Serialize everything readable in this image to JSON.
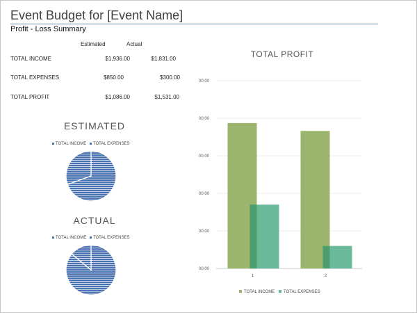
{
  "header": {
    "title": "Event Budget for [Event Name]",
    "subtitle": "Profit - Loss Summary"
  },
  "summary": {
    "col_estimated": "Estimated",
    "col_actual": "Actual",
    "rows": [
      {
        "label": "TOTAL INCOME",
        "estimated": "$1,936.00",
        "actual": "$1,831.00"
      },
      {
        "label": "TOTAL EXPENSES",
        "estimated": "$850.00",
        "actual": "$300.00"
      },
      {
        "label": "TOTAL PROFIT",
        "estimated": "$1,086.00",
        "actual": "$1,531.00"
      }
    ]
  },
  "colors": {
    "pie_fill": "#4a72b0",
    "pie_stripe": "#c9d6ea",
    "income": "#9bb56e",
    "expenses": "#6bb99b",
    "overlap": "#4d9e6e",
    "legend_blue": "#4a72b0"
  },
  "chart_data": [
    {
      "type": "pie",
      "title": "ESTIMATED",
      "legend": [
        "TOTAL INCOME",
        "TOTAL EXPENSES"
      ],
      "legend_placement": "top",
      "values": [
        1936,
        850
      ]
    },
    {
      "type": "pie",
      "title": "ACTUAL",
      "legend": [
        "TOTAL INCOME",
        "TOTAL EXPENSES"
      ],
      "legend_placement": "top",
      "values": [
        1831,
        300
      ]
    },
    {
      "type": "bar",
      "title": "TOTAL PROFIT",
      "categories": [
        "1",
        "2"
      ],
      "series": [
        {
          "name": "TOTAL INCOME",
          "values": [
            1936,
            1831
          ]
        },
        {
          "name": "TOTAL EXPENSES",
          "values": [
            850,
            300
          ]
        }
      ],
      "y_tick_labels": [
        "00:00",
        "00:00",
        "00:00",
        "00:00",
        "00:00",
        "00:00"
      ],
      "ylim": [
        0,
        2500
      ],
      "grid": true,
      "legend_placement": "bottom"
    }
  ]
}
